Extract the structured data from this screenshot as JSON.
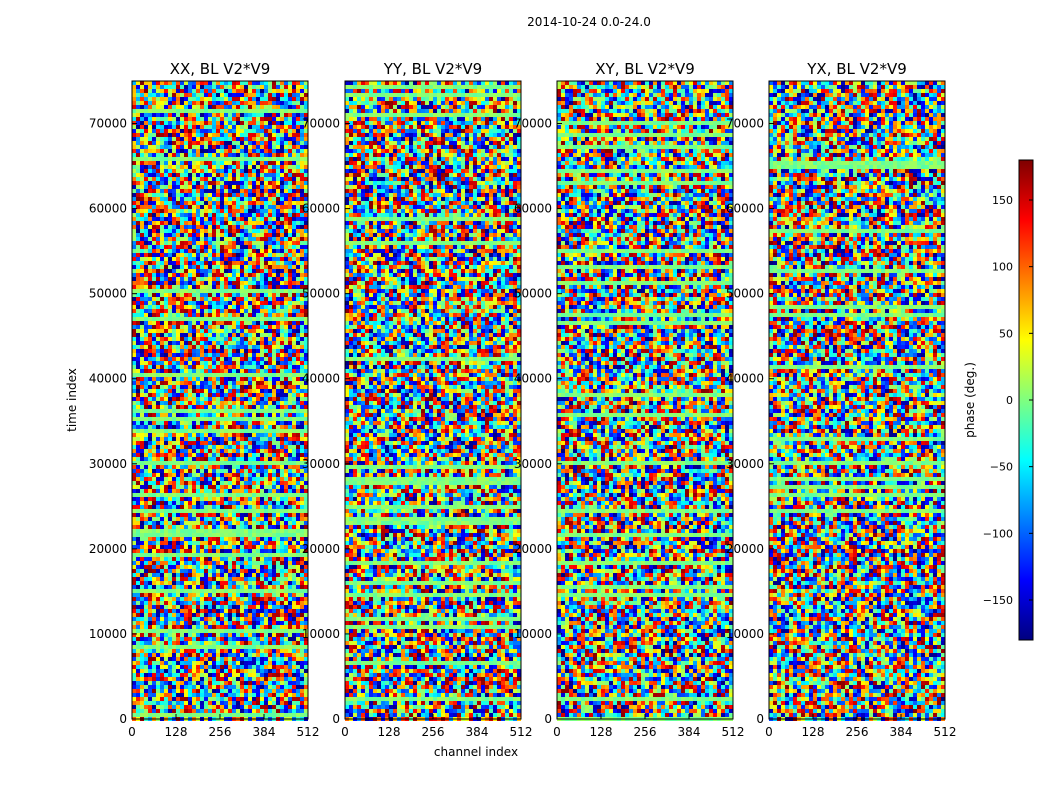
{
  "figure": {
    "suptitle": "2014-10-24 0.0-24.0"
  },
  "chart_data": {
    "type": "heatmap",
    "panels": [
      {
        "title": "XX, BL V2*V9",
        "polarization": "XX"
      },
      {
        "title": "YY, BL V2*V9",
        "polarization": "YY"
      },
      {
        "title": "XY, BL V2*V9",
        "polarization": "XY"
      },
      {
        "title": "YX, BL V2*V9",
        "polarization": "YX"
      }
    ],
    "xlabel": "channel index",
    "ylabel": "time index",
    "xlim": [
      0,
      512
    ],
    "ylim": [
      0,
      75000
    ],
    "xticks": [
      0,
      128,
      256,
      384,
      512
    ],
    "yticks": [
      0,
      10000,
      20000,
      30000,
      40000,
      50000,
      60000,
      70000
    ],
    "colorbar": {
      "label": "phase (deg.)",
      "range": [
        -180,
        180
      ],
      "ticks": [
        -150,
        -100,
        -50,
        0,
        50,
        100,
        150
      ],
      "colormap": "jet",
      "colors": [
        "#00007f",
        "#0000ff",
        "#007fff",
        "#00ffff",
        "#7fff7f",
        "#ffff00",
        "#ff7f00",
        "#ff0000",
        "#7f0000"
      ]
    }
  }
}
